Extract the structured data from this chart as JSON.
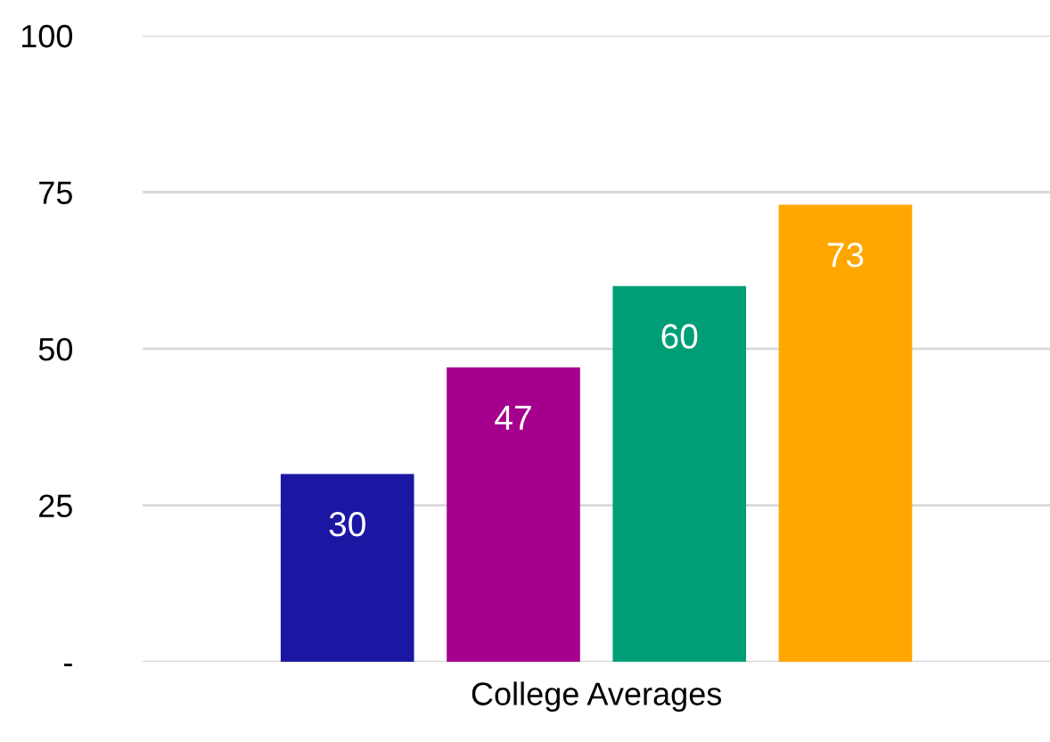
{
  "chart_data": {
    "type": "bar",
    "categories": [
      "College Averages"
    ],
    "series": [
      {
        "color": "#1c17a3",
        "values": [
          30
        ]
      },
      {
        "color": "#a5008d",
        "values": [
          47
        ]
      },
      {
        "color": "#009e76",
        "values": [
          60
        ]
      },
      {
        "color": "#ffa600",
        "values": [
          73
        ]
      }
    ],
    "ylim": [
      0,
      100
    ],
    "yticks": [
      {
        "value": 0,
        "label": "-"
      },
      25,
      50,
      75,
      100
    ],
    "grid": "y",
    "data_labels": true,
    "legend": false
  }
}
